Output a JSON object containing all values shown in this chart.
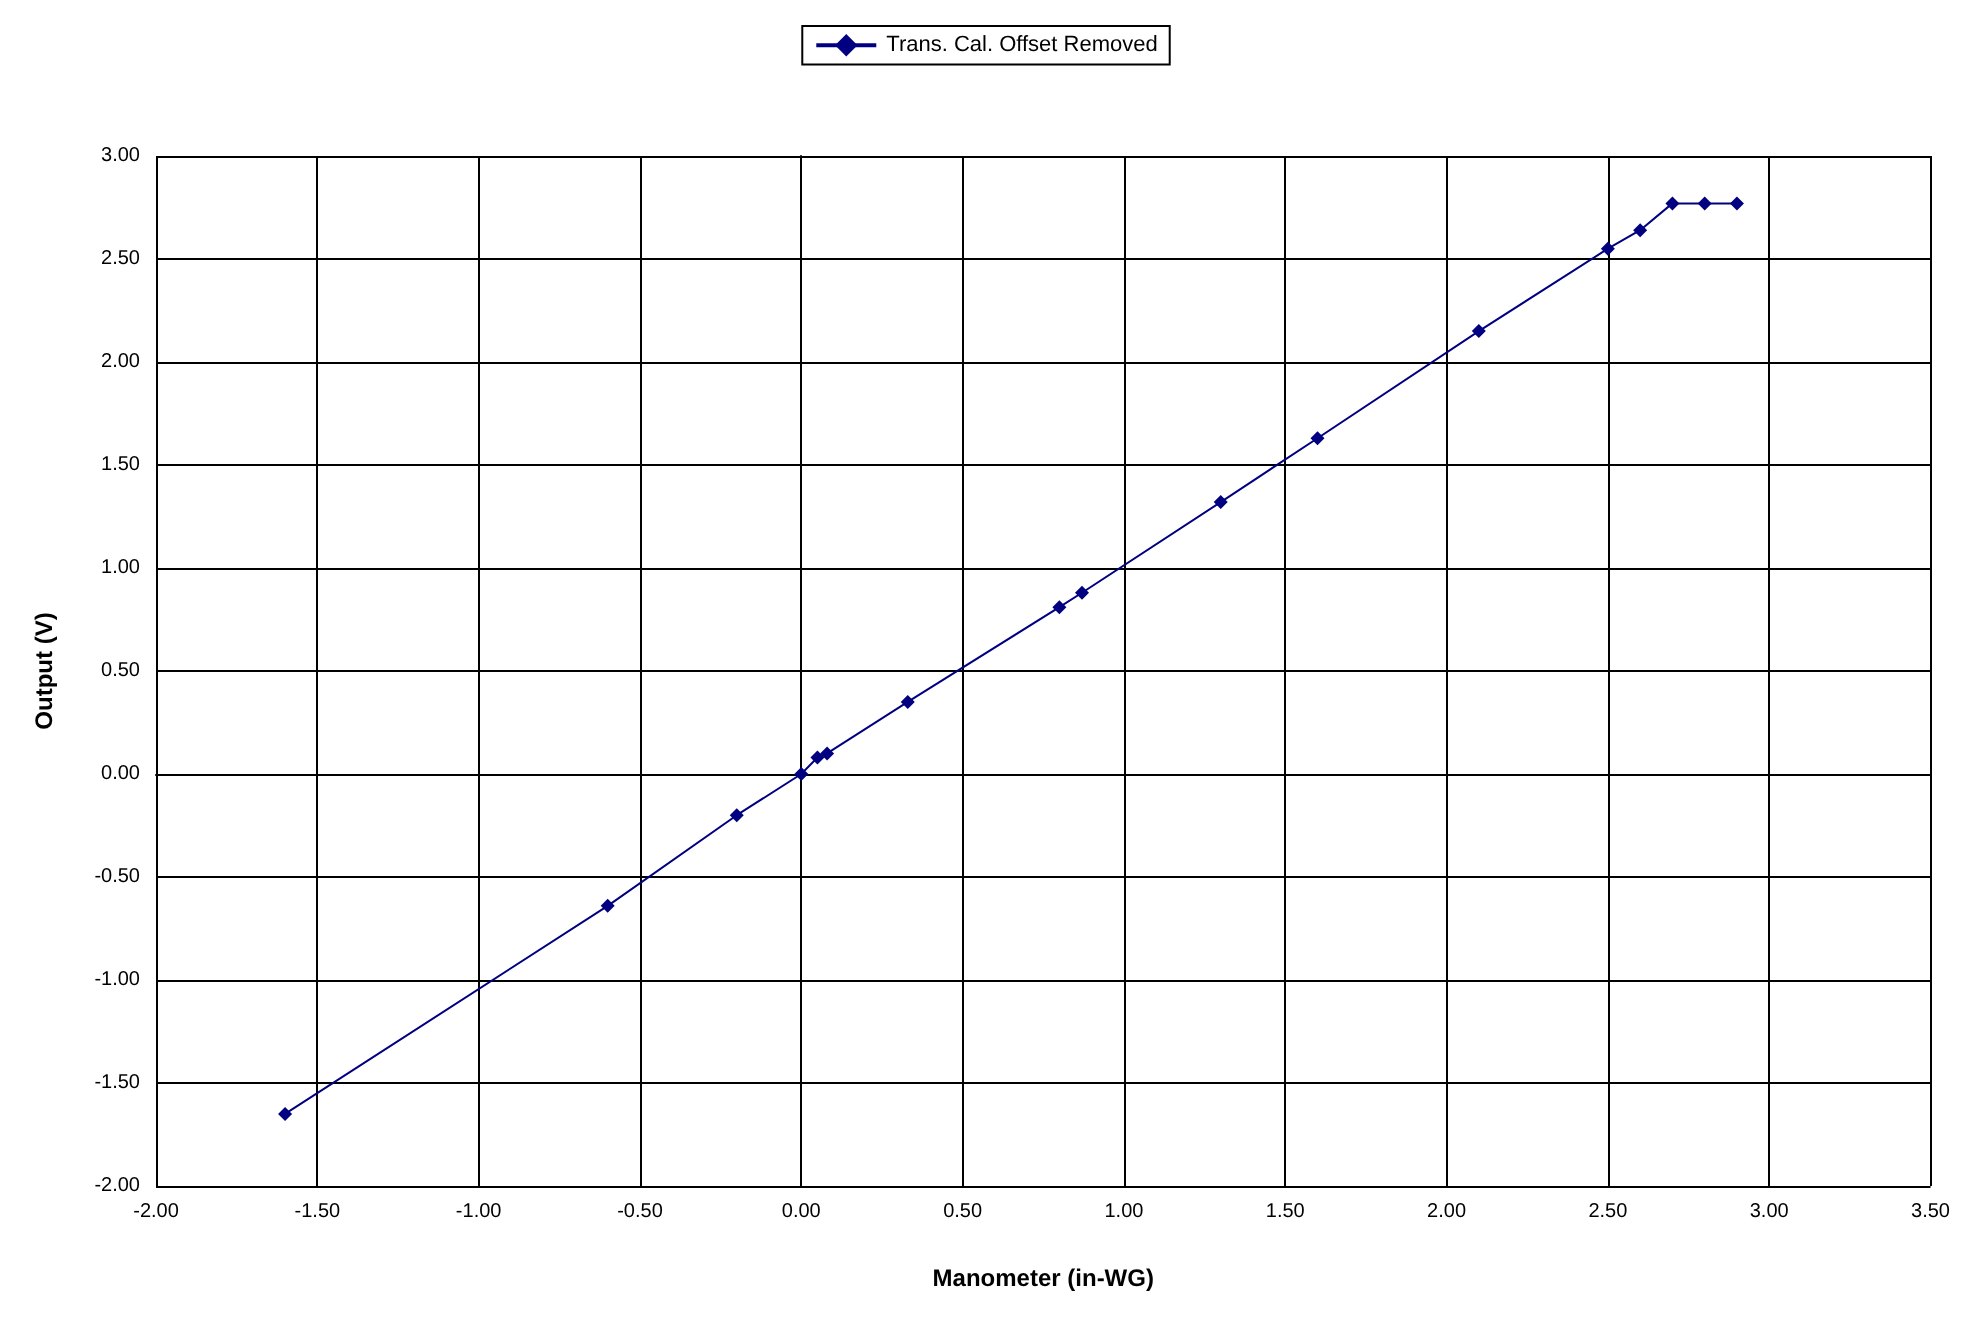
{
  "chart_data": {
    "type": "line",
    "xlabel": "Manometer (in-WG)",
    "ylabel": "Output (V)",
    "x": [
      -1.6,
      -0.6,
      -0.2,
      0,
      0.05,
      0.08,
      0.33,
      0.8,
      0.87,
      1.3,
      1.6,
      2.1,
      2.5,
      2.6,
      2.7,
      2.8,
      2.9
    ],
    "series": [
      {
        "name": "Trans. Cal. Offset Removed",
        "color": "#000080",
        "values": [
          -1.65,
          -0.64,
          -0.2,
          0,
          0.08,
          0.1,
          0.35,
          0.81,
          0.88,
          1.32,
          1.63,
          2.15,
          2.55,
          2.64,
          2.77,
          2.77,
          2.77
        ]
      }
    ],
    "xlim": [
      -2,
      3.5
    ],
    "xticks": [
      {
        "value": -2,
        "label": "-2.00"
      },
      {
        "value": -1.5,
        "label": "-1.50"
      },
      {
        "value": -1,
        "label": "-1.00"
      },
      {
        "value": -0.5,
        "label": "-0.50"
      },
      {
        "value": 0,
        "label": "0.00"
      },
      {
        "value": 0.5,
        "label": "0.50"
      },
      {
        "value": 1,
        "label": "1.00"
      },
      {
        "value": 1.5,
        "label": "1.50"
      },
      {
        "value": 2,
        "label": "2.00"
      },
      {
        "value": 2.5,
        "label": "2.50"
      },
      {
        "value": 3,
        "label": "3.00"
      },
      {
        "value": 3.5,
        "label": "3.50"
      }
    ],
    "ylim": [
      -2,
      3
    ],
    "yticks": [
      {
        "value": -2,
        "label": "-2.00"
      },
      {
        "value": -1.5,
        "label": "-1.50"
      },
      {
        "value": -1,
        "label": "-1.00"
      },
      {
        "value": -0.5,
        "label": "-0.50"
      },
      {
        "value": 0,
        "label": "0.00"
      },
      {
        "value": 0.5,
        "label": "0.50"
      },
      {
        "value": 1,
        "label": "1.00"
      },
      {
        "value": 1.5,
        "label": "1.50"
      },
      {
        "value": 2,
        "label": "2.00"
      },
      {
        "value": 2.5,
        "label": "2.50"
      },
      {
        "value": 3,
        "label": "3.00"
      }
    ],
    "grid": true,
    "legend": "top",
    "marker": "diamond",
    "line_style": "solid"
  }
}
